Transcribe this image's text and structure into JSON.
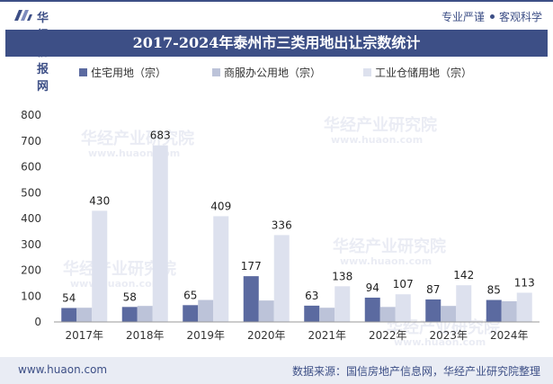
{
  "header": {
    "brand": "华经情报网",
    "slogan_left": "专业严谨",
    "slogan_right": "客观科学"
  },
  "watermark": {
    "text_cn": "华经产业研究院",
    "text_url": "www.huaon.com"
  },
  "chart_data": {
    "type": "bar",
    "title": "2017-2024年泰州市三类用地出让宗数统计",
    "categories": [
      "2017年",
      "2018年",
      "2019年",
      "2020年",
      "2021年",
      "2022年",
      "2023年",
      "2024年"
    ],
    "series": [
      {
        "name": "住宅用地（宗）",
        "color": "#5b6aa0",
        "values": [
          54,
          58,
          65,
          177,
          63,
          94,
          87,
          85
        ],
        "labeled": true
      },
      {
        "name": "商服办公用地（宗）",
        "color": "#bcc3d9",
        "values": [
          55,
          62,
          85,
          83,
          55,
          58,
          62,
          80
        ],
        "labeled": false
      },
      {
        "name": "工业仓储用地（宗）",
        "color": "#dde1ee",
        "values": [
          430,
          683,
          409,
          336,
          138,
          107,
          142,
          113
        ],
        "labeled": true
      }
    ],
    "y_ticks": [
      "0",
      "100",
      "200",
      "300",
      "400",
      "500",
      "600",
      "700",
      "800"
    ],
    "ylim": [
      0,
      800
    ],
    "xlabel": "",
    "ylabel": "",
    "legend_position": "top"
  },
  "footer": {
    "url": "www.huaon.com",
    "source": "数据来源：国信房地产信息网，华经产业研究院整理"
  }
}
